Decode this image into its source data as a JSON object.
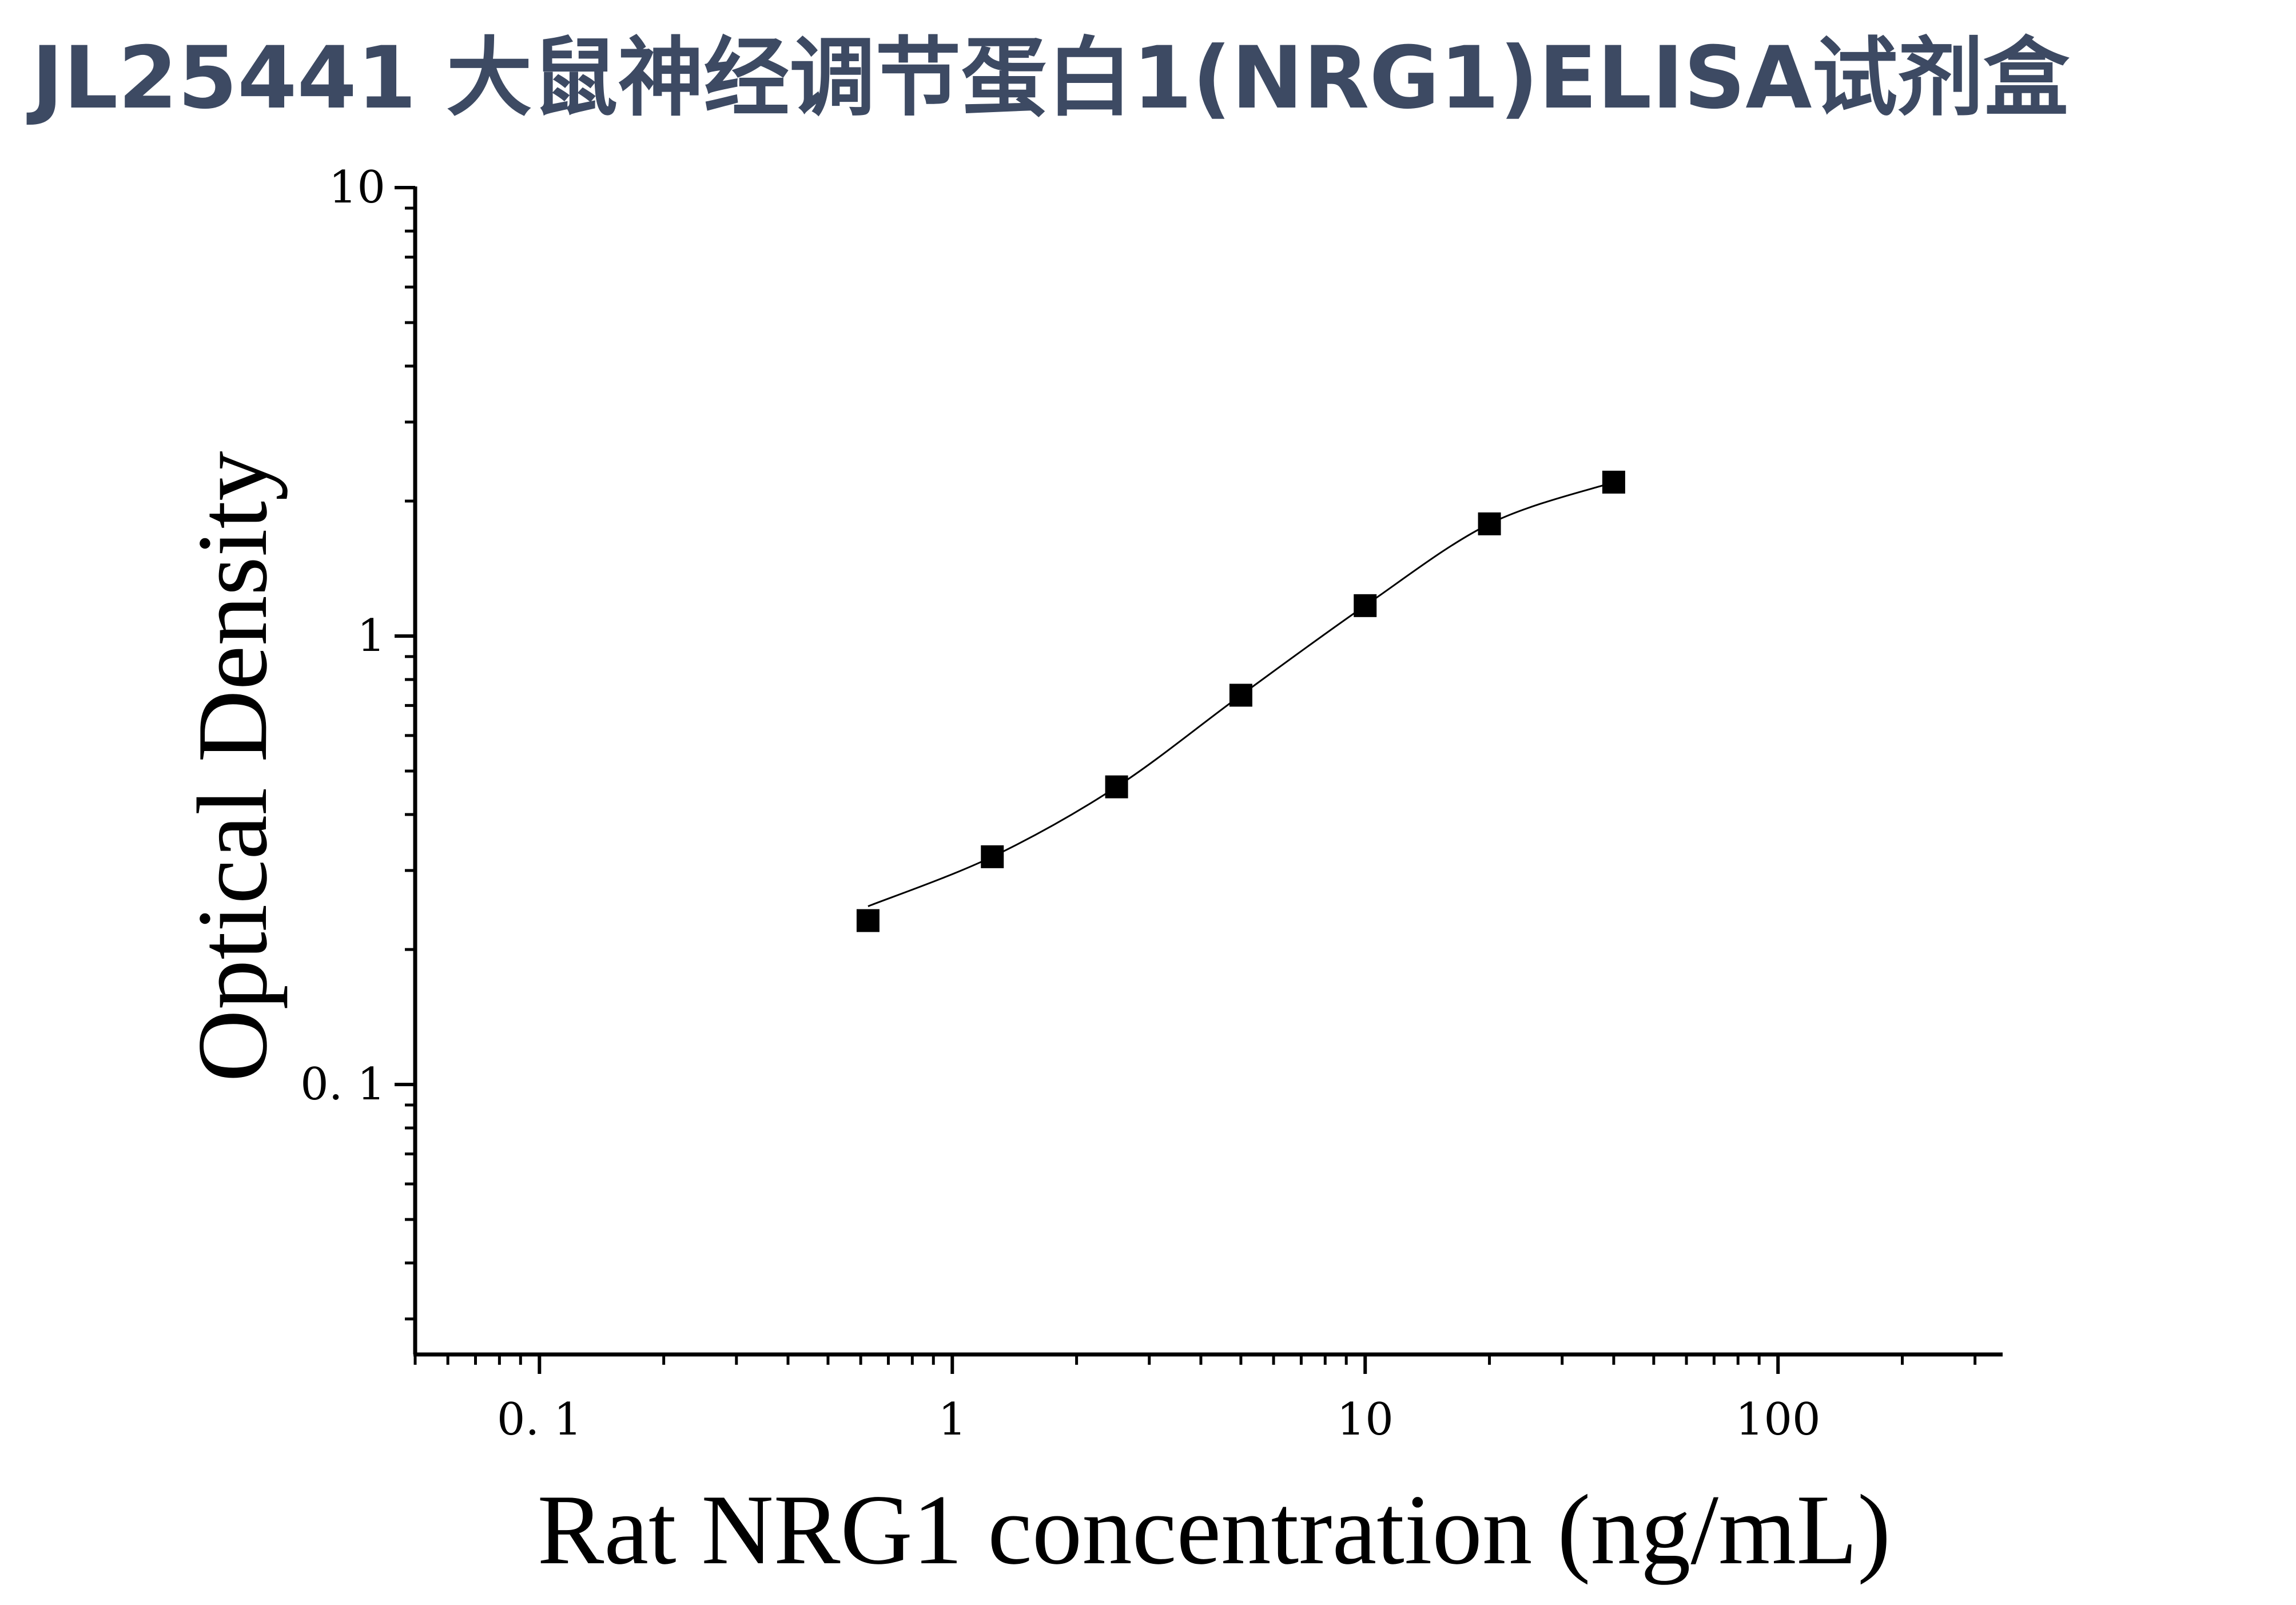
{
  "chart_data": {
    "type": "scatter",
    "title": "JL25441 大鼠神经调节蛋白1(NRG1)ELISA试剂盒",
    "xlabel": "Rat NRG1 concentration (ng/mL)",
    "ylabel": "Optical Density",
    "xscale": "log",
    "yscale": "log",
    "xlim": [
      0.05,
      350
    ],
    "ylim": [
      0.025,
      10
    ],
    "x_tick_labels": [
      {
        "value": 0.1,
        "label": "0. 1"
      },
      {
        "value": 1,
        "label": "1"
      },
      {
        "value": 10,
        "label": "10"
      },
      {
        "value": 100,
        "label": "100"
      }
    ],
    "y_tick_labels": [
      {
        "value": 0.1,
        "label": "0. 1"
      },
      {
        "value": 1,
        "label": "1"
      },
      {
        "value": 10,
        "label": "10"
      }
    ],
    "series": [
      {
        "marker": "square",
        "x": [
          0.625,
          1.25,
          2.5,
          5,
          10,
          20,
          40
        ],
        "y": [
          0.232,
          0.322,
          0.461,
          0.738,
          1.169,
          1.779,
          2.204
        ]
      }
    ],
    "fit_curve": "four-parameter logistic",
    "grid": false,
    "legend": "none"
  },
  "colors": {
    "title": "#3d4a63",
    "axes": "#000000",
    "markers": "#000000",
    "curve": "#000000",
    "background": "#ffffff"
  }
}
